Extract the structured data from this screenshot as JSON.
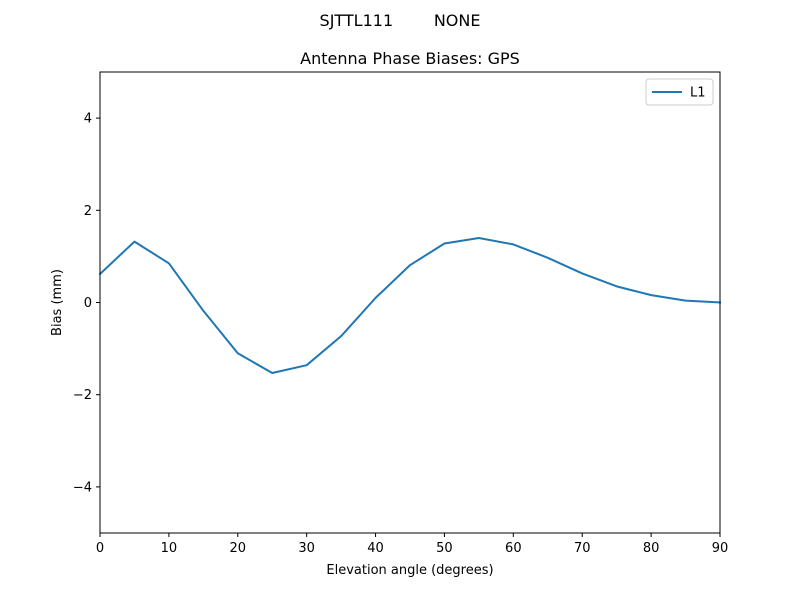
{
  "suptitle": "SJTTL111        NONE",
  "chart_data": {
    "type": "line",
    "title": "Antenna Phase Biases: GPS",
    "xlabel": "Elevation angle (degrees)",
    "ylabel": "Bias (mm)",
    "xlim": [
      0,
      90
    ],
    "ylim": [
      -5,
      5
    ],
    "xticks": [
      0,
      10,
      20,
      30,
      40,
      50,
      60,
      70,
      80,
      90
    ],
    "xtick_labels": [
      "0",
      "10",
      "20",
      "30",
      "40",
      "50",
      "60",
      "70",
      "80",
      "90"
    ],
    "yticks": [
      -4,
      -2,
      0,
      2,
      4
    ],
    "ytick_labels": [
      "−4",
      "−2",
      "0",
      "2",
      "4"
    ],
    "grid": false,
    "legend_position": "top-right",
    "series": [
      {
        "name": "L1",
        "color": "#1f77b4",
        "x": [
          0,
          5,
          10,
          15,
          20,
          25,
          30,
          35,
          40,
          45,
          50,
          55,
          60,
          65,
          70,
          75,
          80,
          85,
          90
        ],
        "y": [
          0.62,
          1.32,
          0.85,
          -0.18,
          -1.1,
          -1.53,
          -1.36,
          -0.73,
          0.1,
          0.81,
          1.28,
          1.4,
          1.26,
          0.97,
          0.63,
          0.35,
          0.16,
          0.04,
          0.0
        ]
      }
    ]
  }
}
